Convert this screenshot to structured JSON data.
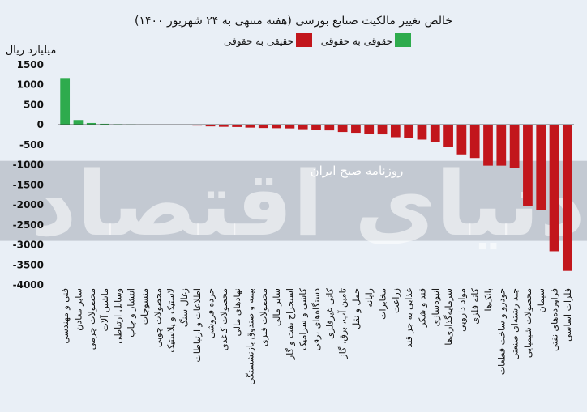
{
  "chart_data": {
    "type": "bar",
    "title": "خالص تغییر مالکیت صنایع بورسی (هفته منتهی به ۲۴ شهریور ۱۴۰۰)",
    "ylabel": "میلیارد ریال",
    "ylim": [
      -4000,
      1500
    ],
    "yticks": [
      1500,
      1000,
      500,
      0,
      -500,
      -1000,
      -1500,
      -2000,
      -2500,
      -3000,
      -3500,
      -4000
    ],
    "ytick_labels": [
      "1500",
      "1000",
      "500",
      "0",
      "-500",
      "-1000",
      "-1500",
      "-2000",
      "-2500",
      "-3000",
      "-3500",
      "-4000"
    ],
    "legend_position": "top-center",
    "legend": [
      {
        "label": "حقوقی به حقوقی",
        "color": "#2eab4d"
      },
      {
        "label": "حقیقی به حقوقی",
        "color": "#c2161c"
      }
    ],
    "series": [
      {
        "name": "حقیقی به حقوقی",
        "color": "#c2161c",
        "categories": [
          "فنی و مهندسی",
          "سایر معادن",
          "محصولات چرمی",
          "ماشین آلات",
          "وسایل ارتباطی",
          "انتشار و چاپ",
          "منسوجات",
          "محصولات چوبی",
          "لاستیک و پلاستیک",
          "زغال سنگ",
          "اطلاعات و ارتباطات",
          "خرده فروشی",
          "محصولات کاغذی",
          "نهادهای مالی",
          "بیمه و صندوق بازنشستگی",
          "محصولات فلزی",
          "سایر مالی",
          "استخراج نفت و گاز",
          "کاشی و سرامیک",
          "دستگاه‌های برقی",
          "کانی غیرفلزی",
          "تامین آب، برق، گاز",
          "حمل و نقل",
          "رایانه",
          "مخابرات",
          "زراعت",
          "غذایی به جز قند",
          "قند و شکر",
          "انبوه‌سازی",
          "سرمایه‌گذاری‌ها",
          "مواد دارویی",
          "کانه فلزی",
          "بانک‌ها",
          "خودرو و ساخت قطعات",
          "چند رشته‌ای صنعتی",
          "محصولات شیمیایی",
          "سیمان",
          "فراورده‌های نفتی",
          "فلزات اساسی"
        ],
        "values": [
          1170,
          120,
          45,
          25,
          15,
          10,
          5,
          0,
          -5,
          -10,
          -20,
          -40,
          -50,
          -55,
          -70,
          -80,
          -85,
          -90,
          -110,
          -120,
          -140,
          -180,
          -200,
          -220,
          -240,
          -310,
          -340,
          -370,
          -440,
          -560,
          -740,
          -830,
          -1020,
          -1020,
          -1080,
          -2030,
          -2120,
          -3160,
          -3650
        ]
      }
    ]
  },
  "watermark": {
    "line1": "دنیای اقتصاد",
    "line2": "روزنامه صبح ایران"
  }
}
